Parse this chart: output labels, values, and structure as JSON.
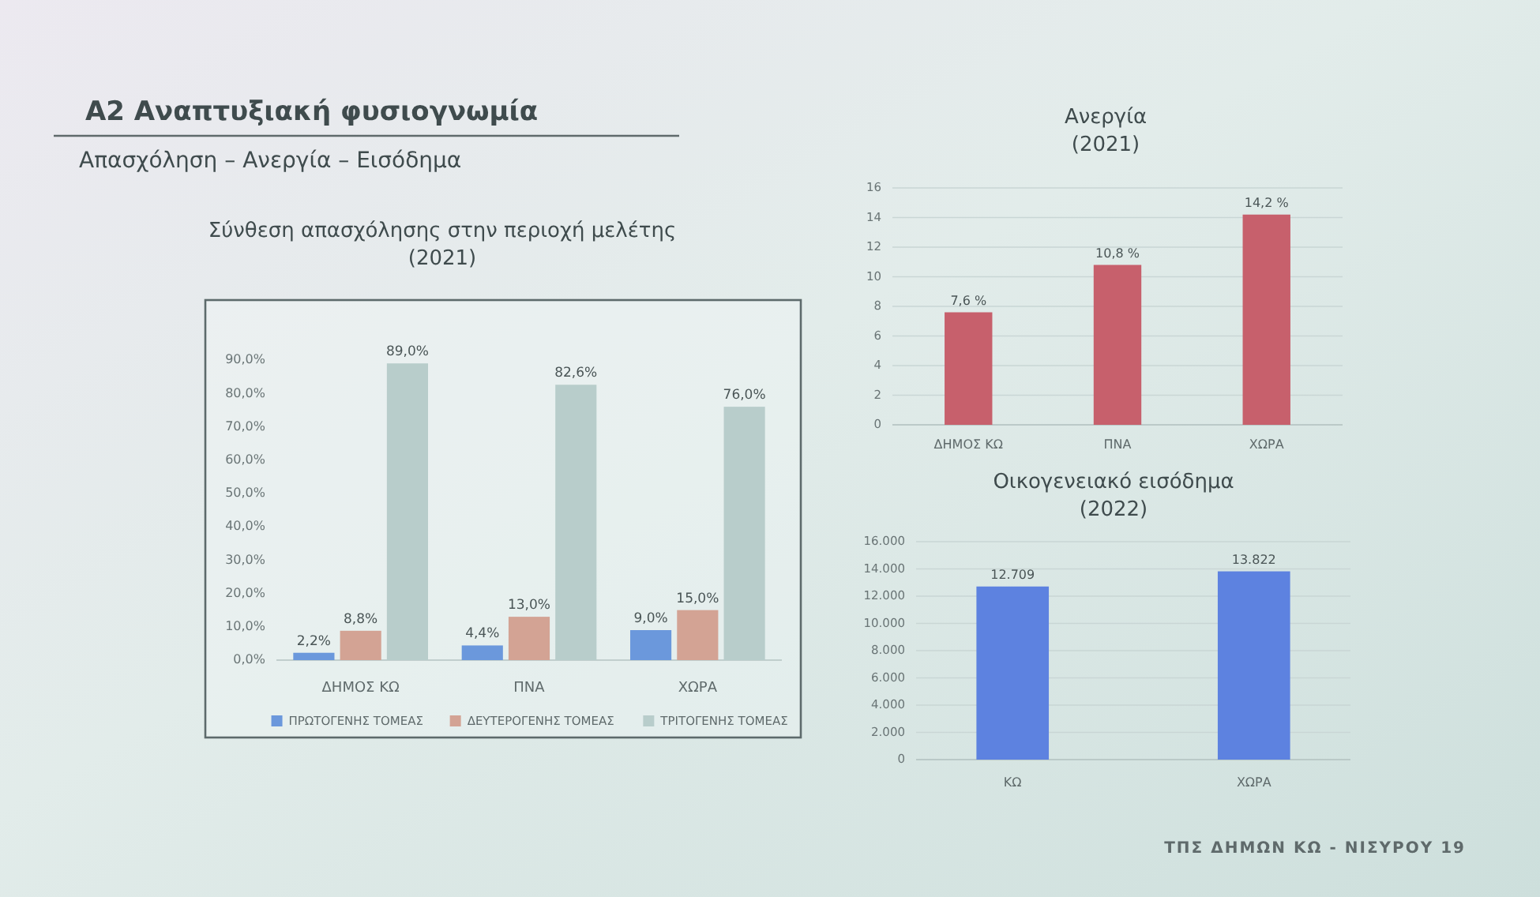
{
  "chart_data": [
    {
      "type": "other",
      "title": "Α2 Αναπτυξιακή φυσιογνωμία",
      "subtitle": "Απασχόληση – Ανεργία – Εισόδημα",
      "annotations": [
        "ΤΠΣ ΔΗΜΩΝ ΚΩ - ΝΙΣΥΡΟΥ 19"
      ]
    },
    {
      "type": "bar",
      "title": "Σύνθεση απασχόλησης στην περιοχή μελέτης",
      "subtitle": "(2021)",
      "categories": [
        "ΔΗΜΟΣ ΚΩ",
        "ΠΝΑ",
        "ΧΩΡΑ"
      ],
      "series": [
        {
          "name": "ΠΡΩΤΟΓΕΝΗΣ ΤΟΜΕΑΣ",
          "color": "#6b98dc",
          "values": [
            2.2,
            4.4,
            9.0
          ],
          "value_labels": [
            "2,2%",
            "4,4%",
            "9,0%"
          ]
        },
        {
          "name": "ΔΕΥΤΕΡΟΓΕΝΗΣ ΤΟΜΕΑΣ",
          "color": "#d3a394",
          "values": [
            8.8,
            13.0,
            15.0
          ],
          "value_labels": [
            "8,8%",
            "13,0%",
            "15,0%"
          ]
        },
        {
          "name": "ΤΡΙΤΟΓΕΝΗΣ ΤΟΜΕΑΣ",
          "color": "#b8cdcb",
          "values": [
            89.0,
            82.6,
            76.0
          ],
          "value_labels": [
            "89,0%",
            "82,6%",
            "76,0%"
          ]
        }
      ],
      "ylim": [
        0,
        90
      ],
      "yticks": [
        {
          "value": 0,
          "label": "0,0%"
        },
        {
          "value": 10,
          "label": "10,0%"
        },
        {
          "value": 20,
          "label": "20,0%"
        },
        {
          "value": 30,
          "label": "30,0%"
        },
        {
          "value": 40,
          "label": "40,0%"
        },
        {
          "value": 50,
          "label": "50,0%"
        },
        {
          "value": 60,
          "label": "60,0%"
        },
        {
          "value": 70,
          "label": "70,0%"
        },
        {
          "value": 80,
          "label": "80,0%"
        },
        {
          "value": 90,
          "label": "90,0%"
        }
      ],
      "legend": "bottom"
    },
    {
      "type": "bar",
      "title": "Ανεργία",
      "subtitle": "(2021)",
      "categories": [
        "ΔΗΜΟΣ ΚΩ",
        "ΠΝΑ",
        "ΧΩΡΑ"
      ],
      "values": [
        7.6,
        10.8,
        14.2
      ],
      "value_labels": [
        "7,6 %",
        "10,8 %",
        "14,2 %"
      ],
      "color": "#c7606c",
      "ylim": [
        0,
        16
      ],
      "yticks": [
        0,
        2,
        4,
        6,
        8,
        10,
        12,
        14,
        16
      ],
      "grid": "y"
    },
    {
      "type": "bar",
      "title": "Οικογενειακό εισόδημα",
      "subtitle": "(2022)",
      "categories": [
        "ΚΩ",
        "ΧΩΡΑ"
      ],
      "values": [
        12709,
        13822
      ],
      "value_labels": [
        "12.709",
        "13.822"
      ],
      "color": "#5d82e0",
      "ylim": [
        0,
        16000
      ],
      "yticks": [
        0,
        {
          "value": 2000,
          "label": "2.000"
        },
        {
          "value": 4000,
          "label": "4.000"
        },
        {
          "value": 6000,
          "label": "6.000"
        },
        {
          "value": 8000,
          "label": "8.000"
        },
        {
          "value": 10000,
          "label": "10.000"
        },
        {
          "value": 12000,
          "label": "12.000"
        },
        {
          "value": 14000,
          "label": "14.000"
        },
        {
          "value": 16000,
          "label": "16.000"
        }
      ],
      "grid": "y"
    }
  ]
}
